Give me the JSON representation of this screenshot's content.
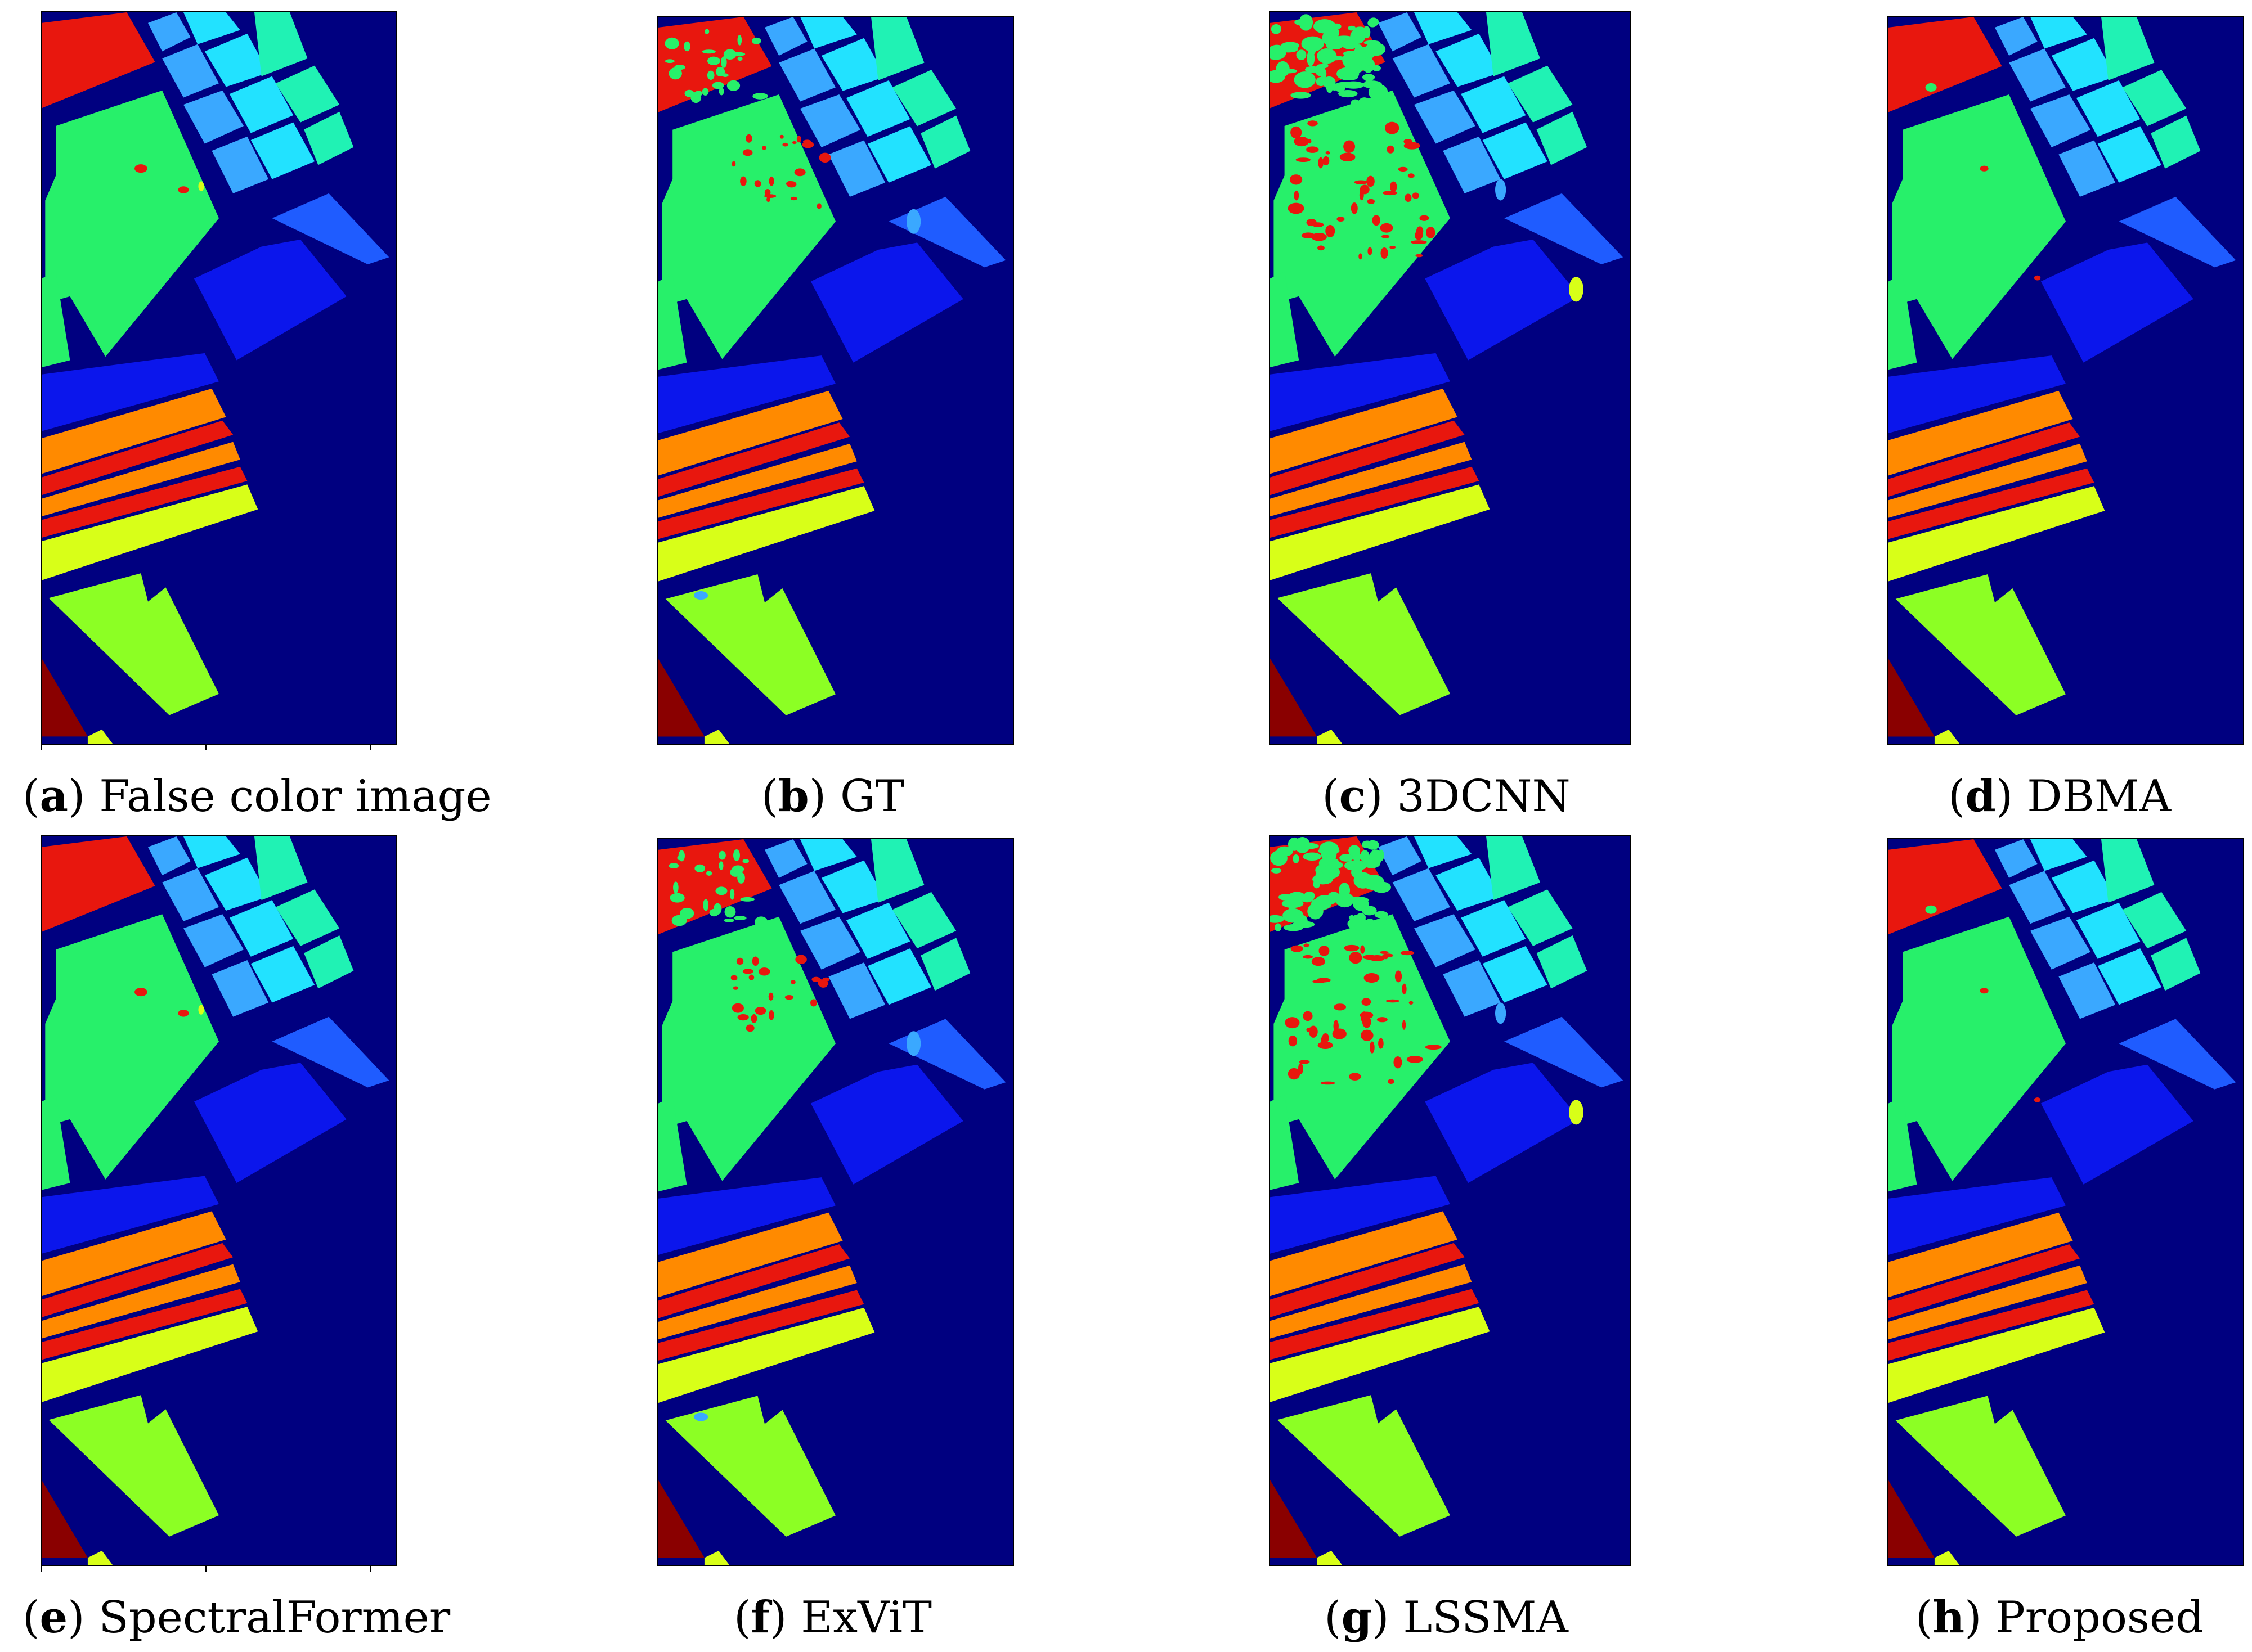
{
  "panels": [
    {
      "letter": "a",
      "label": "False color image",
      "noise": "none",
      "ticks": true
    },
    {
      "letter": "b",
      "label": "GT",
      "noise": "gt",
      "ticks": false
    },
    {
      "letter": "c",
      "label": "3DCNN",
      "noise": "heavy",
      "ticks": false
    },
    {
      "letter": "d",
      "label": "DBMA",
      "noise": "clean",
      "ticks": false
    },
    {
      "letter": "e",
      "label": "SpectralFormer",
      "noise": "none",
      "ticks": true
    },
    {
      "letter": "f",
      "label": "ExViT",
      "noise": "gt",
      "ticks": false
    },
    {
      "letter": "g",
      "label": "LSSMA",
      "noise": "heavy",
      "ticks": false
    },
    {
      "letter": "h",
      "label": "Proposed",
      "noise": "clean",
      "ticks": false
    }
  ],
  "colors": {
    "background": "#000080",
    "red": "#e8170e",
    "green": "#27f06a",
    "teal": "#20f2b4",
    "cyan": "#22e2ff",
    "sky": "#3aa8ff",
    "blue": "#0b16ec",
    "medium_blue": "#1f5cff",
    "orange": "#ff8a00",
    "yellow": "#d8ff18",
    "lime": "#8cff24",
    "dark_red": "#8a0000"
  }
}
